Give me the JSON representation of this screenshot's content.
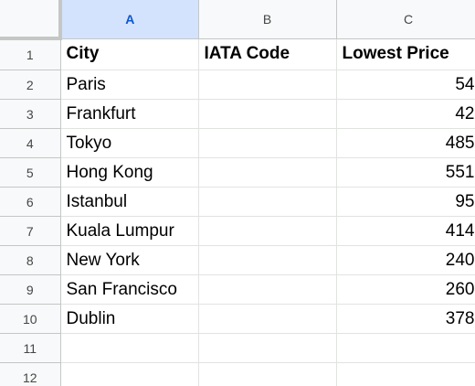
{
  "columns": [
    "A",
    "B",
    "C"
  ],
  "row_numbers": [
    "1",
    "2",
    "3",
    "4",
    "5",
    "6",
    "7",
    "8",
    "9",
    "10",
    "11",
    "12"
  ],
  "header_cells": {
    "a": "City",
    "b": "IATA Code",
    "c": "Lowest Price"
  },
  "rows": [
    {
      "city": "Paris",
      "iata": "",
      "price": "54"
    },
    {
      "city": "Frankfurt",
      "iata": "",
      "price": "42"
    },
    {
      "city": "Tokyo",
      "iata": "",
      "price": "485"
    },
    {
      "city": "Hong Kong",
      "iata": "",
      "price": "551"
    },
    {
      "city": "Istanbul",
      "iata": "",
      "price": "95"
    },
    {
      "city": "Kuala Lumpur",
      "iata": "",
      "price": "414"
    },
    {
      "city": "New York",
      "iata": "",
      "price": "240"
    },
    {
      "city": "San Francisco",
      "iata": "",
      "price": "260"
    },
    {
      "city": "Dublin",
      "iata": "",
      "price": "378"
    },
    {
      "city": "",
      "iata": "",
      "price": ""
    },
    {
      "city": "",
      "iata": "",
      "price": ""
    }
  ],
  "selected_column": "A",
  "colors": {
    "selected_header_bg": "#d3e3fd",
    "selected_header_text": "#0b57d0",
    "header_bg": "#f8f9fa",
    "gridline": "#e1e3e1"
  }
}
